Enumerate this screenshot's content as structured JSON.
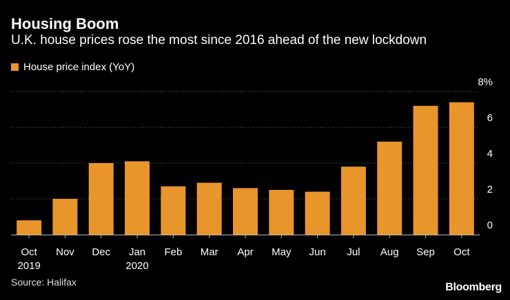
{
  "title": "Housing Boom",
  "subtitle": "U.K. house prices rose the most since 2016 ahead of the new lockdown",
  "legend_label": "House price index (YoY)",
  "source": "Source: Halifax",
  "brand": "Bloomberg",
  "bar_color": "#e8952b",
  "chart_data": {
    "type": "bar",
    "title": "Housing Boom",
    "subtitle": "U.K. house prices rose the most since 2016 ahead of the new lockdown",
    "categories": [
      "Oct",
      "Nov",
      "Dec",
      "Jan",
      "Feb",
      "Mar",
      "Apr",
      "May",
      "Jun",
      "Jul",
      "Aug",
      "Sep",
      "Oct"
    ],
    "year_labels": [
      "2019",
      "",
      "",
      "2020",
      "",
      "",
      "",
      "",
      "",
      "",
      "",
      "",
      ""
    ],
    "series": [
      {
        "name": "House price index (YoY)",
        "values": [
          0.8,
          2.0,
          4.0,
          4.1,
          2.7,
          2.9,
          2.6,
          2.5,
          2.4,
          3.8,
          5.2,
          7.2,
          7.4
        ]
      }
    ],
    "y_ticks": [
      0,
      2,
      4,
      6,
      8
    ],
    "y_tick_labels": [
      "0",
      "2",
      "4",
      "6",
      "8%"
    ],
    "ylim": [
      0,
      8
    ],
    "ylabel": "",
    "xlabel": "",
    "grid": true,
    "y_axis_side": "right",
    "legend_position": "top-left"
  }
}
